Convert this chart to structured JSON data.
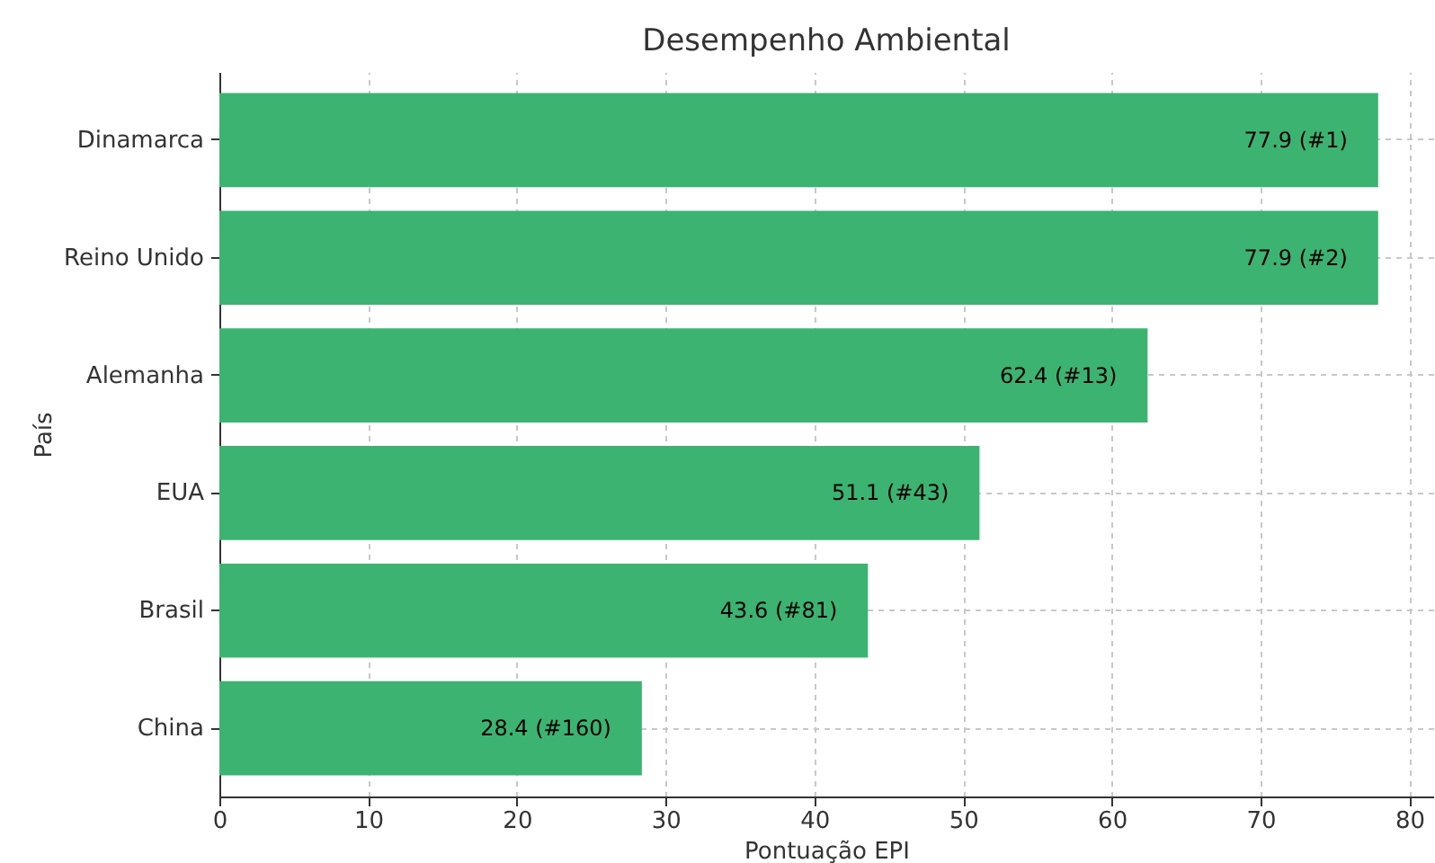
{
  "chart_data": {
    "type": "bar",
    "orientation": "horizontal",
    "title": "Desempenho Ambiental",
    "xlabel": "Pontuação EPI",
    "ylabel": "País",
    "categories": [
      "Dinamarca",
      "Reino Unido",
      "Alemanha",
      "EUA",
      "Brasil",
      "China"
    ],
    "values": [
      77.9,
      77.9,
      62.4,
      51.1,
      43.6,
      28.4
    ],
    "value_labels": [
      "77.9 (#1)",
      "77.9 (#2)",
      "62.4 (#13)",
      "51.1 (#43)",
      "43.6 (#81)",
      "28.4 (#160)"
    ],
    "color": "#3cb371",
    "xlim": [
      0,
      81.6
    ],
    "xticks": [
      0,
      10,
      20,
      30,
      40,
      50,
      60,
      70,
      80
    ],
    "grid": true
  }
}
